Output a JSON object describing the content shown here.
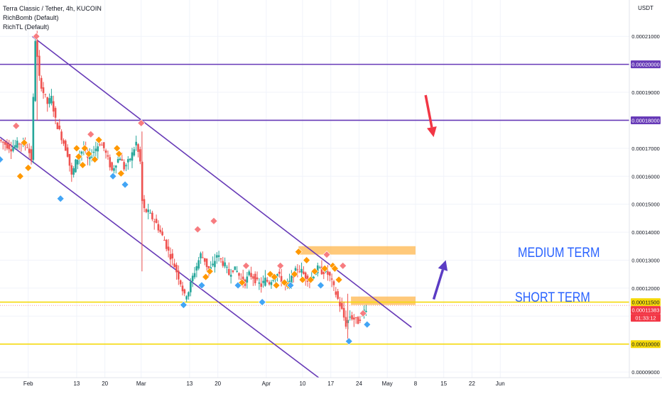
{
  "window": {
    "title": "Terra Classic / Tether, 4h, KUCOIN",
    "indicators": [
      "RichBomb (Default)",
      "RichTL (Default)"
    ]
  },
  "price_axis": {
    "currency": "USDT",
    "tick_labels": [
      "0.00021000",
      "0.00020000",
      "0.00019000",
      "0.00018000",
      "0.00017000",
      "0.00016000",
      "0.00015000",
      "0.00014000",
      "0.00013000",
      "0.00012000",
      "0.00011500",
      "0.00011383",
      "01:33:12",
      "0.00010000",
      "0.00009000"
    ],
    "tick_values": [
      0.00021,
      0.0002,
      0.00019,
      0.00018,
      0.00017,
      0.00016,
      0.00015,
      0.00014,
      0.00013,
      0.00012,
      0.00011,
      0.0001,
      9e-05
    ],
    "highlighted_labels": [
      {
        "text": "0.00020000",
        "value": 0.0002,
        "color": "#673ab7"
      },
      {
        "text": "0.00018000",
        "value": 0.00018,
        "color": "#673ab7"
      },
      {
        "text": "0.00011500",
        "value": 0.000115,
        "color": "#f5d90a",
        "text_color": "#131722"
      },
      {
        "text": "0.00011383",
        "value": 0.00011383,
        "color": "#f23645"
      },
      {
        "text": "01:33:12",
        "value": 0.00011383,
        "color": "#f23645",
        "sub": true
      },
      {
        "text": "0.00010000",
        "value": 0.0001,
        "color": "#f5d90a",
        "text_color": "#131722"
      }
    ]
  },
  "time_axis": {
    "labels": [
      "Feb",
      "13",
      "20",
      "Mar",
      "13",
      "20",
      "Apr",
      "10",
      "17",
      "24",
      "May",
      "8",
      "15",
      "22",
      "Jun"
    ]
  },
  "annotations": {
    "medium_term": "MEDIUM TERM",
    "short_term": "SHORT TERM"
  },
  "colors": {
    "up": "#26a69a",
    "down": "#ef5350",
    "channel": "#673ab7",
    "support": "#f5d90a",
    "zone": "#ffb74d",
    "arrow_red": "#f23645",
    "arrow_purple": "#5b3cc4",
    "diamond_red": "#f77c80",
    "diamond_orange": "#ff9800",
    "diamond_blue": "#42a5f5"
  },
  "chart_data": {
    "type": "candlestick",
    "title": "Terra Classic / Tether, 4h, KUCOIN",
    "ylim": [
      8.8e-05,
      0.000223
    ],
    "x_range_days": [
      -7,
      149
    ],
    "x_tick_days": [
      0,
      12,
      19,
      28,
      40,
      47,
      59,
      68,
      75,
      82,
      89,
      96,
      103,
      110,
      117
    ],
    "horizontal_levels": [
      {
        "value": 0.0002,
        "color": "#673ab7"
      },
      {
        "value": 0.00018,
        "color": "#673ab7"
      },
      {
        "value": 0.000115,
        "color": "#f5d90a"
      },
      {
        "value": 0.0001,
        "color": "#f5d90a"
      }
    ],
    "channel_lines": [
      {
        "from": [
          1,
          0.00021
        ],
        "to": [
          95,
          0.000106
        ]
      },
      {
        "from": [
          -7,
          0.000174
        ],
        "to": [
          72,
          8.8e-05
        ]
      }
    ],
    "zones": [
      {
        "x": [
          67,
          96
        ],
        "y": [
          0.000132,
          0.000135
        ]
      },
      {
        "x": [
          80,
          96
        ],
        "y": [
          0.000114,
          0.000117
        ]
      }
    ],
    "price_path": [
      [
        -7,
        0.000173
      ],
      [
        -4,
        0.00017
      ],
      [
        -2,
        0.000172
      ],
      [
        0,
        0.000171
      ],
      [
        1,
        0.000166
      ],
      [
        2,
        0.000209
      ],
      [
        3,
        0.000195
      ],
      [
        4,
        0.00019
      ],
      [
        5,
        0.000186
      ],
      [
        6,
        0.000188
      ],
      [
        7,
        0.00018
      ],
      [
        8,
        0.000176
      ],
      [
        9,
        0.000172
      ],
      [
        10,
        0.000168
      ],
      [
        11,
        0.00016
      ],
      [
        12,
        0.000165
      ],
      [
        13,
        0.000168
      ],
      [
        14,
        0.00017
      ],
      [
        15,
        0.000166
      ],
      [
        16,
        0.000168
      ],
      [
        17,
        0.00017
      ],
      [
        18,
        0.000172
      ],
      [
        19,
        0.00017
      ],
      [
        20,
        0.000166
      ],
      [
        21,
        0.000162
      ],
      [
        22,
        0.000165
      ],
      [
        23,
        0.000167
      ],
      [
        24,
        0.000163
      ],
      [
        25,
        0.000165
      ],
      [
        26,
        0.000168
      ],
      [
        27,
        0.000172
      ],
      [
        28,
        0.000165
      ],
      [
        28.5,
        0.000151
      ],
      [
        29,
        0.000148
      ],
      [
        30,
        0.000147
      ],
      [
        31,
        0.000145
      ],
      [
        32,
        0.000143
      ],
      [
        33,
        0.00014
      ],
      [
        34,
        0.000137
      ],
      [
        35,
        0.000133
      ],
      [
        36,
        0.00013
      ],
      [
        37,
        0.000126
      ],
      [
        38,
        0.000122
      ],
      [
        39,
        0.000117
      ],
      [
        40,
        0.000119
      ],
      [
        41,
        0.000124
      ],
      [
        42,
        0.000128
      ],
      [
        43,
        0.000132
      ],
      [
        44,
        0.00013
      ],
      [
        45,
        0.000126
      ],
      [
        46,
        0.000128
      ],
      [
        47,
        0.000132
      ],
      [
        48,
        0.00013
      ],
      [
        49,
        0.000128
      ],
      [
        50,
        0.000125
      ],
      [
        51,
        0.000127
      ],
      [
        52,
        0.000126
      ],
      [
        53,
        0.000123
      ],
      [
        54,
        0.000122
      ],
      [
        55,
        0.000125
      ],
      [
        56,
        0.000124
      ],
      [
        57,
        0.000122
      ],
      [
        58,
        0.000121
      ],
      [
        59,
        0.000123
      ],
      [
        60,
        0.000122
      ],
      [
        61,
        0.000124
      ],
      [
        62,
        0.000125
      ],
      [
        63,
        0.000123
      ],
      [
        64,
        0.000121
      ],
      [
        65,
        0.000122
      ],
      [
        66,
        0.000125
      ],
      [
        67,
        0.000127
      ],
      [
        68,
        0.000126
      ],
      [
        69,
        0.000124
      ],
      [
        70,
        0.000123
      ],
      [
        71,
        0.000125
      ],
      [
        72,
        0.000127
      ],
      [
        73,
        0.000126
      ],
      [
        74,
        0.000126
      ],
      [
        75,
        0.000124
      ],
      [
        76,
        0.00012
      ],
      [
        77,
        0.000116
      ],
      [
        78,
        0.000112
      ],
      [
        79,
        0.000107
      ],
      [
        80,
        0.00011
      ],
      [
        81,
        0.000109
      ],
      [
        82,
        0.000108
      ],
      [
        83,
        0.000111
      ],
      [
        84,
        0.000113
      ]
    ],
    "signals": [
      {
        "x": -7,
        "y": 0.000166,
        "color": "blue"
      },
      {
        "x": -3,
        "y": 0.000178,
        "color": "red"
      },
      {
        "x": -2,
        "y": 0.00016,
        "color": "orange"
      },
      {
        "x": -1,
        "y": 0.000172,
        "color": "orange"
      },
      {
        "x": 0,
        "y": 0.000163,
        "color": "orange"
      },
      {
        "x": 2,
        "y": 0.00021,
        "color": "red"
      },
      {
        "x": 8,
        "y": 0.000152,
        "color": "blue"
      },
      {
        "x": 12,
        "y": 0.00017,
        "color": "orange"
      },
      {
        "x": 12.5,
        "y": 0.000167,
        "color": "orange"
      },
      {
        "x": 13.5,
        "y": 0.000164,
        "color": "orange"
      },
      {
        "x": 14,
        "y": 0.00017,
        "color": "orange"
      },
      {
        "x": 15,
        "y": 0.000168,
        "color": "orange"
      },
      {
        "x": 15.5,
        "y": 0.000175,
        "color": "red"
      },
      {
        "x": 16.5,
        "y": 0.000166,
        "color": "orange"
      },
      {
        "x": 17.5,
        "y": 0.000173,
        "color": "orange"
      },
      {
        "x": 21,
        "y": 0.00016,
        "color": "blue"
      },
      {
        "x": 22,
        "y": 0.00017,
        "color": "orange"
      },
      {
        "x": 22.5,
        "y": 0.000168,
        "color": "orange"
      },
      {
        "x": 23,
        "y": 0.000161,
        "color": "orange"
      },
      {
        "x": 24,
        "y": 0.000157,
        "color": "blue"
      },
      {
        "x": 28,
        "y": 0.000179,
        "color": "red"
      },
      {
        "x": 38.5,
        "y": 0.000114,
        "color": "blue"
      },
      {
        "x": 42,
        "y": 0.000141,
        "color": "red"
      },
      {
        "x": 43,
        "y": 0.000121,
        "color": "blue"
      },
      {
        "x": 44,
        "y": 0.000124,
        "color": "orange"
      },
      {
        "x": 45,
        "y": 0.000126,
        "color": "orange"
      },
      {
        "x": 46,
        "y": 0.000144,
        "color": "red"
      },
      {
        "x": 52,
        "y": 0.000121,
        "color": "blue"
      },
      {
        "x": 53,
        "y": 0.000122,
        "color": "orange"
      },
      {
        "x": 54,
        "y": 0.000128,
        "color": "red"
      },
      {
        "x": 58,
        "y": 0.000115,
        "color": "blue"
      },
      {
        "x": 60,
        "y": 0.000125,
        "color": "orange"
      },
      {
        "x": 61,
        "y": 0.000124,
        "color": "orange"
      },
      {
        "x": 61.5,
        "y": 0.000121,
        "color": "orange"
      },
      {
        "x": 62.5,
        "y": 0.000128,
        "color": "red"
      },
      {
        "x": 63.5,
        "y": 0.000122,
        "color": "orange"
      },
      {
        "x": 64.5,
        "y": 0.000121,
        "color": "orange"
      },
      {
        "x": 65,
        "y": 0.000121,
        "color": "blue"
      },
      {
        "x": 66,
        "y": 0.000125,
        "color": "orange"
      },
      {
        "x": 67,
        "y": 0.000133,
        "color": "orange"
      },
      {
        "x": 68,
        "y": 0.000123,
        "color": "orange"
      },
      {
        "x": 69,
        "y": 0.00013,
        "color": "orange"
      },
      {
        "x": 70,
        "y": 0.000123,
        "color": "orange"
      },
      {
        "x": 71,
        "y": 0.000126,
        "color": "orange"
      },
      {
        "x": 72.5,
        "y": 0.000121,
        "color": "blue"
      },
      {
        "x": 73.5,
        "y": 0.000127,
        "color": "orange"
      },
      {
        "x": 74,
        "y": 0.000132,
        "color": "red"
      },
      {
        "x": 75.5,
        "y": 0.000128,
        "color": "orange"
      },
      {
        "x": 76,
        "y": 0.000127,
        "color": "orange"
      },
      {
        "x": 77,
        "y": 0.000123,
        "color": "orange"
      },
      {
        "x": 78,
        "y": 0.000128,
        "color": "red"
      },
      {
        "x": 79.5,
        "y": 0.000101,
        "color": "blue"
      },
      {
        "x": 83,
        "y": 0.000111,
        "color": "red"
      },
      {
        "x": 84,
        "y": 0.000107,
        "color": "blue"
      }
    ],
    "arrows": [
      {
        "color": "red",
        "from": [
          98.5,
          0.000189
        ],
        "to": [
          100.5,
          0.000174
        ]
      },
      {
        "color": "purple",
        "from": [
          100.5,
          0.000116
        ],
        "to": [
          103.5,
          0.00013
        ]
      }
    ]
  }
}
